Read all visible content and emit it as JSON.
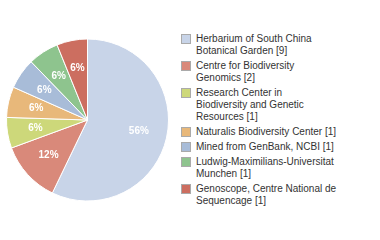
{
  "chart_data": {
    "type": "pie",
    "categories": [
      "Herbarium of South China\nBotanical Garden [9]",
      "Centre for Biodiversity\nGenomics [2]",
      "Research Center in\nBiodiversity and Genetic\nResources [1]",
      "Naturalis Biodiversity Center [1]",
      "Mined from GenBank, NCBI [1]",
      "Ludwig-Maximilians-Universitat\nMunchen [1]",
      "Genoscope, Centre National de\nSequencage [1]"
    ],
    "values": [
      56,
      12,
      6,
      6,
      6,
      6,
      6
    ],
    "value_labels": [
      "56%",
      "12%",
      "6%",
      "6%",
      "6%",
      "6%",
      "6%"
    ],
    "colors": [
      "#c8d4e8",
      "#d9897a",
      "#cdd87a",
      "#e8b87a",
      "#a8bcd8",
      "#8ec48e",
      "#cc6e60"
    ],
    "data_labels": true,
    "legend": "right"
  }
}
